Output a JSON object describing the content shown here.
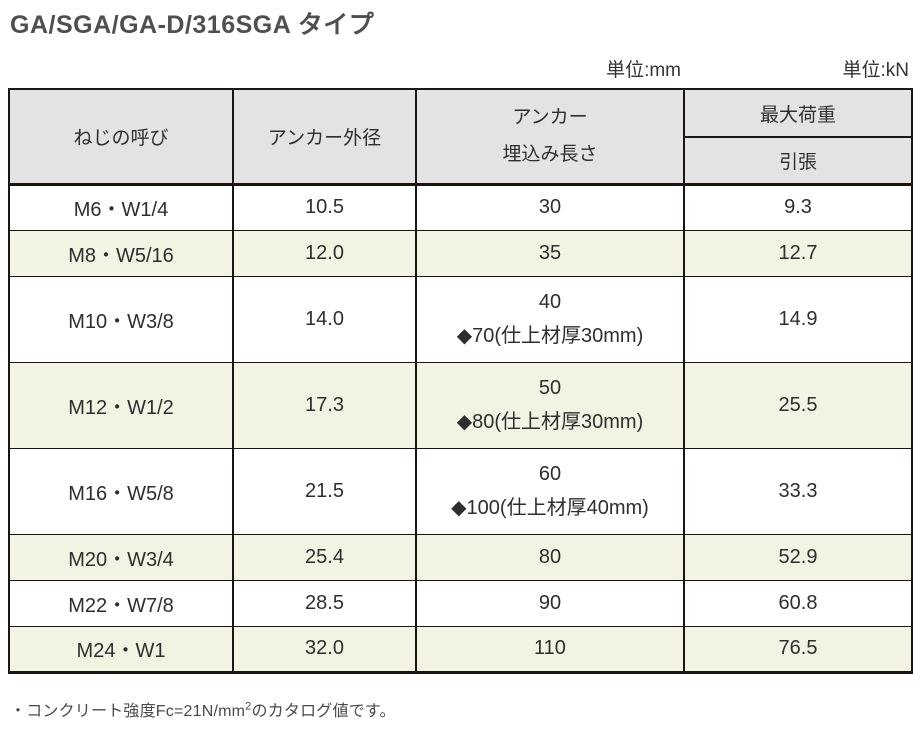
{
  "page": {
    "title": "GA/SGA/GA-D/316SGA タイプ"
  },
  "units": {
    "mm": "単位:mm",
    "kn": "単位:kN"
  },
  "table": {
    "headers": {
      "thread_size": "ねじの呼び",
      "outer_diameter": "アンカー外径",
      "embedment_line1": "アンカー",
      "embedment_line2": "埋込み長さ",
      "max_load": "最大荷重",
      "tension": "引張"
    },
    "rows": [
      {
        "name": "M6・W1/4",
        "outer_diameter": "10.5",
        "embedment": [
          "30"
        ],
        "tension": "9.3",
        "shaded": false
      },
      {
        "name": "M8・W5/16",
        "outer_diameter": "12.0",
        "embedment": [
          "35"
        ],
        "tension": "12.7",
        "shaded": true
      },
      {
        "name": "M10・W3/8",
        "outer_diameter": "14.0",
        "embedment": [
          "40",
          "◆70(仕上材厚30mm)"
        ],
        "tension": "14.9",
        "shaded": false
      },
      {
        "name": "M12・W1/2",
        "outer_diameter": "17.3",
        "embedment": [
          "50",
          "◆80(仕上材厚30mm)"
        ],
        "tension": "25.5",
        "shaded": true
      },
      {
        "name": "M16・W5/8",
        "outer_diameter": "21.5",
        "embedment": [
          "60",
          "◆100(仕上材厚40mm)"
        ],
        "tension": "33.3",
        "shaded": false
      },
      {
        "name": "M20・W3/4",
        "outer_diameter": "25.4",
        "embedment": [
          "80"
        ],
        "tension": "52.9",
        "shaded": true
      },
      {
        "name": "M22・W7/8",
        "outer_diameter": "28.5",
        "embedment": [
          "90"
        ],
        "tension": "60.8",
        "shaded": false
      },
      {
        "name": "M24・W1",
        "outer_diameter": "32.0",
        "embedment": [
          "110"
        ],
        "tension": "76.5",
        "shaded": true
      }
    ]
  },
  "footnote": {
    "prefix": "・コンクリート強度Fc=21N/mm",
    "sup": "2",
    "suffix": "のカタログ値です。"
  },
  "colors": {
    "header_bg": "#e3e3e3",
    "shaded_row_bg": "#f2f3e3",
    "border": "#1c1410",
    "title_text": "#4f4f4f",
    "body_text": "#2e2e2e"
  }
}
